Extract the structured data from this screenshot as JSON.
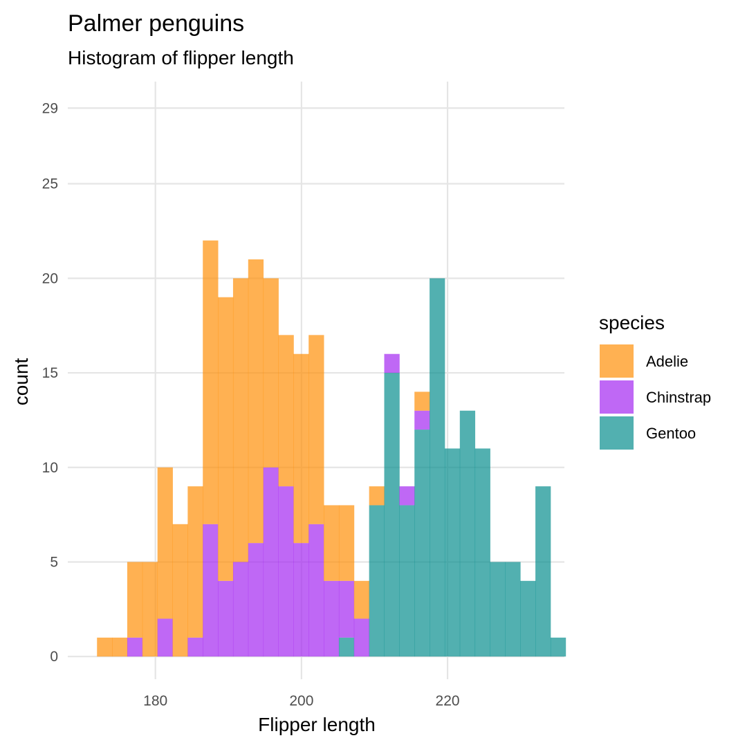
{
  "chart_data": {
    "type": "bar",
    "title": "Palmer penguins",
    "subtitle": "Histogram of flipper length",
    "xlabel": "Flipper length",
    "ylabel": "count",
    "bin_width": 2.07,
    "bin_start": 172,
    "xlim": [
      168,
      236
    ],
    "ylim": [
      -1.2,
      30.4
    ],
    "x_ticks": [
      180,
      200,
      220
    ],
    "y_ticks": [
      0,
      5,
      10,
      15,
      20,
      25,
      29
    ],
    "grid": true,
    "legend": {
      "title": "species",
      "position": "right"
    },
    "stacked": true,
    "series": [
      {
        "name": "Adelie",
        "color": "#FF8C00",
        "values": [
          1,
          1,
          4,
          5,
          8,
          7,
          8,
          15,
          15,
          15,
          15,
          10,
          8,
          10,
          10,
          4,
          4,
          2,
          1,
          0,
          0,
          1,
          0,
          0,
          0,
          0,
          0,
          0,
          0,
          0,
          0
        ]
      },
      {
        "name": "Chinstrap",
        "color": "#A020F0",
        "values": [
          0,
          0,
          1,
          0,
          2,
          0,
          1,
          7,
          4,
          5,
          6,
          10,
          9,
          6,
          7,
          4,
          3,
          2,
          0,
          1,
          1,
          1,
          0,
          0,
          0,
          0,
          0,
          0,
          0,
          0,
          0
        ]
      },
      {
        "name": "Gentoo",
        "color": "#008B8B",
        "values": [
          0,
          0,
          0,
          0,
          0,
          0,
          0,
          0,
          0,
          0,
          0,
          0,
          0,
          0,
          0,
          0,
          1,
          0,
          8,
          15,
          8,
          12,
          20,
          11,
          13,
          11,
          5,
          5,
          4,
          9,
          1
        ]
      }
    ]
  }
}
